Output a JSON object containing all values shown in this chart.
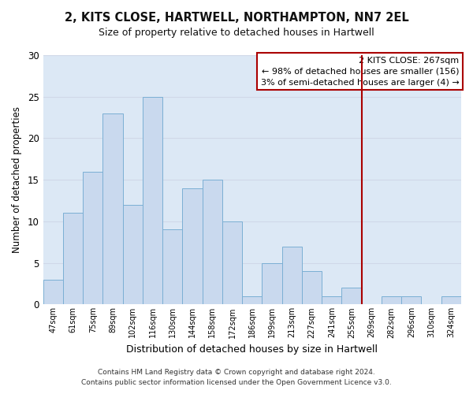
{
  "title": "2, KITS CLOSE, HARTWELL, NORTHAMPTON, NN7 2EL",
  "subtitle": "Size of property relative to detached houses in Hartwell",
  "xlabel": "Distribution of detached houses by size in Hartwell",
  "ylabel": "Number of detached properties",
  "bin_labels": [
    "47sqm",
    "61sqm",
    "75sqm",
    "89sqm",
    "102sqm",
    "116sqm",
    "130sqm",
    "144sqm",
    "158sqm",
    "172sqm",
    "186sqm",
    "199sqm",
    "213sqm",
    "227sqm",
    "241sqm",
    "255sqm",
    "269sqm",
    "282sqm",
    "296sqm",
    "310sqm",
    "324sqm"
  ],
  "bar_heights": [
    3,
    11,
    16,
    23,
    12,
    25,
    9,
    14,
    15,
    10,
    1,
    5,
    7,
    4,
    1,
    2,
    0,
    1,
    1,
    0,
    1
  ],
  "bar_color": "#c9d9ee",
  "bar_edge_color": "#7bafd4",
  "grid_color": "#d0d8e8",
  "bg_color": "#dce8f5",
  "fig_bg_color": "#ffffff",
  "ylim": [
    0,
    30
  ],
  "yticks": [
    0,
    5,
    10,
    15,
    20,
    25,
    30
  ],
  "vline_color": "#aa0000",
  "annotation_title": "2 KITS CLOSE: 267sqm",
  "annotation_line1": "← 98% of detached houses are smaller (156)",
  "annotation_line2": "3% of semi-detached houses are larger (4) →",
  "annotation_box_color": "#ffffff",
  "annotation_box_edge": "#aa0000",
  "footer_line1": "Contains HM Land Registry data © Crown copyright and database right 2024.",
  "footer_line2": "Contains public sector information licensed under the Open Government Licence v3.0."
}
